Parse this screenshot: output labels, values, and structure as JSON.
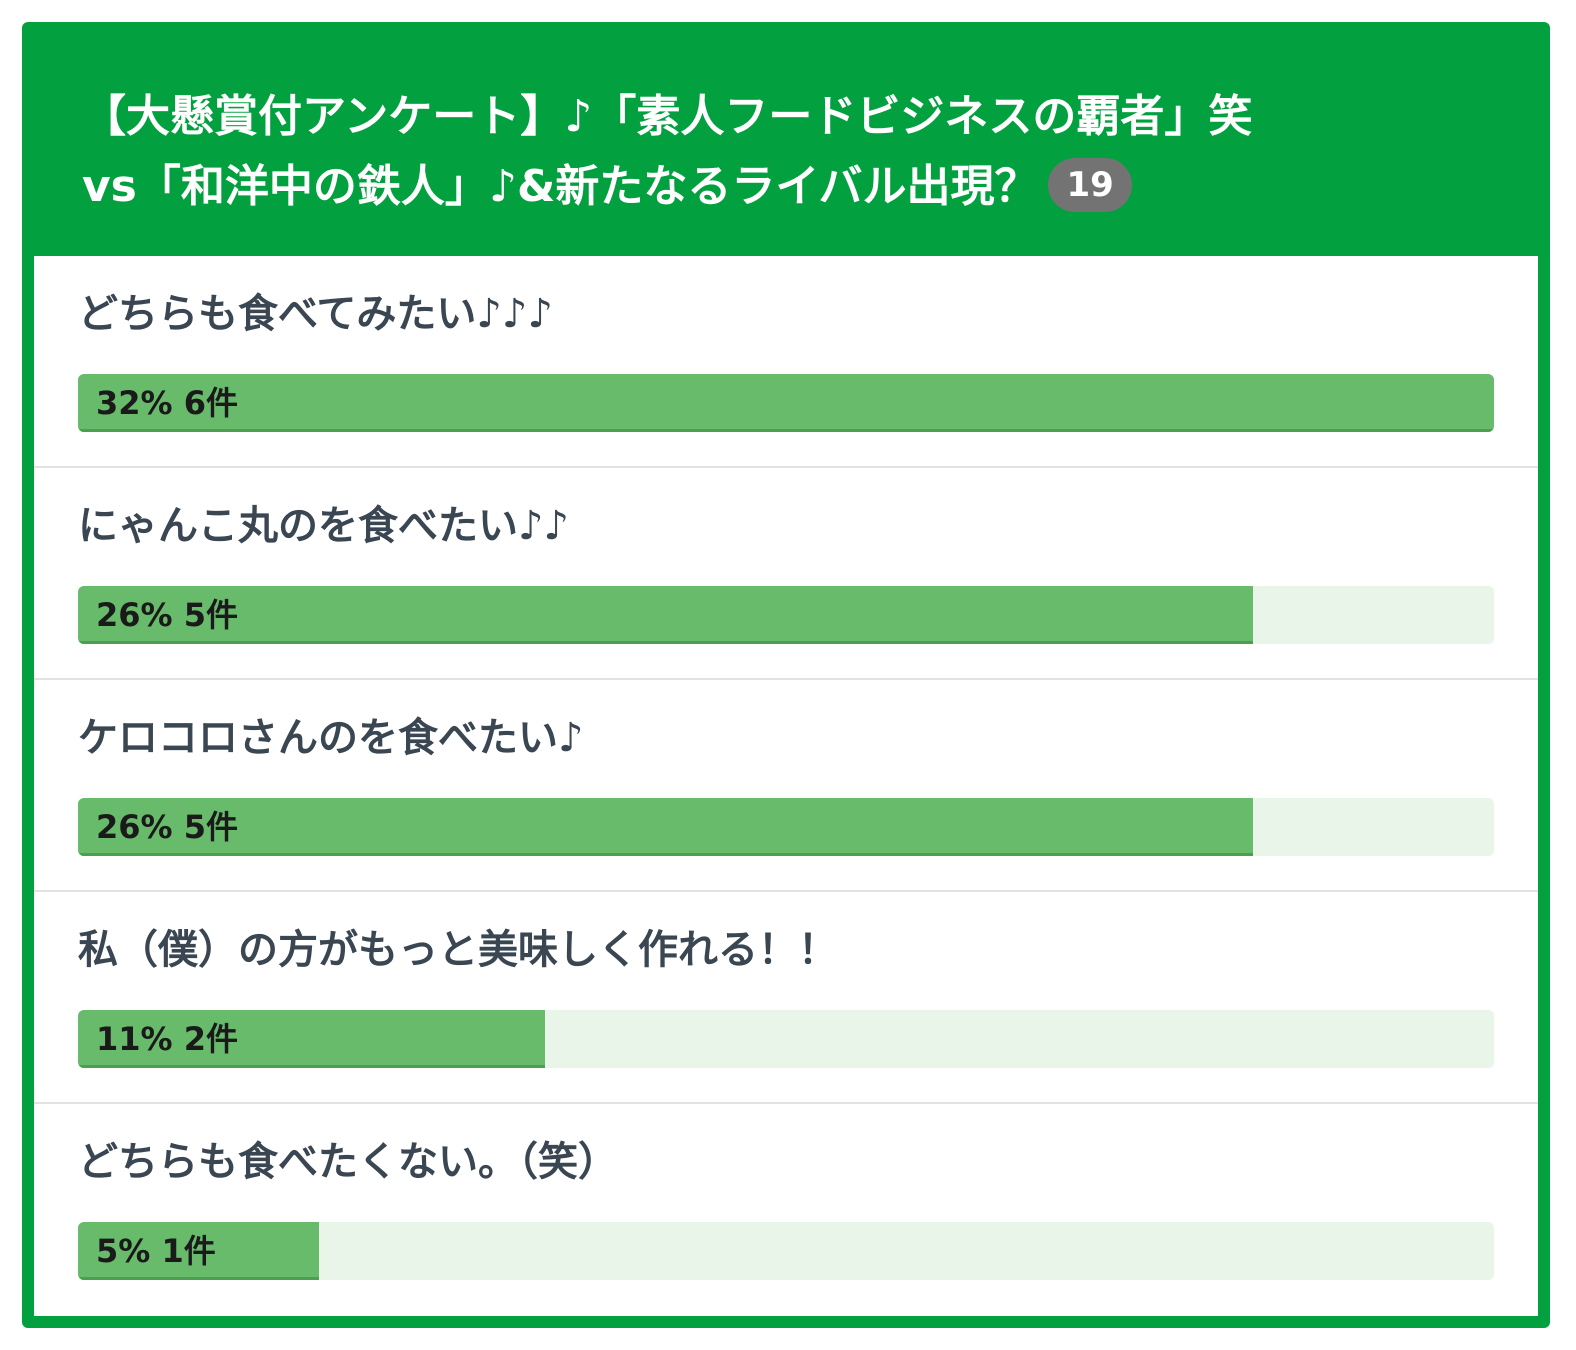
{
  "poll": {
    "title_line1": "【大懸賞付アンケート】♪「素人フードビジネスの覇者」笑",
    "title_line2": "vs「和洋中の鉄人」♪&新たなるライバル出現？",
    "count": "19",
    "accent_color": "#03a03f",
    "bar_color": "#68bb6b",
    "bar_track_color": "#e8f5e8",
    "badge_color": "#737373"
  },
  "options": [
    {
      "label": "どちらも食べてみたい♪♪♪",
      "result": "32% 6件",
      "fill_fraction": 1.0
    },
    {
      "label": "にゃんこ丸のを食べたい♪♪",
      "result": "26% 5件",
      "fill_fraction": 0.83
    },
    {
      "label": "ケロコロさんのを食べたい♪",
      "result": "26% 5件",
      "fill_fraction": 0.83
    },
    {
      "label": "私（僕）の方がもっと美味しく作れる！！",
      "result": "11% 2件",
      "fill_fraction": 0.33
    },
    {
      "label": "どちらも食べたくない。（笑）",
      "result": "5% 1件",
      "fill_fraction": 0.17
    }
  ]
}
